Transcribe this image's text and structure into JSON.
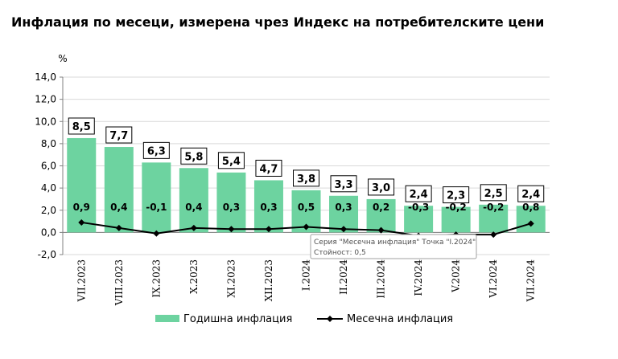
{
  "title": "Инфлация по месеци, измерена чрез Индекс на потребителските цени",
  "chart_data": {
    "type": "bar",
    "title": "Инфлация по месеци, измерена чрез Индекс на потребителските цени",
    "ylabel": "%",
    "ylim": [
      -2.0,
      14.0
    ],
    "yticks": [
      "-2,0",
      "0,0",
      "2,0",
      "4,0",
      "6,0",
      "8,0",
      "10,0",
      "12,0",
      "14,0"
    ],
    "grid": true,
    "legend_position": "bottom",
    "categories": [
      "VII.2023",
      "VIII.2023",
      "IX.2023",
      "X.2023",
      "XI.2023",
      "XII.2023",
      "I.2024",
      "II.2024",
      "III.2024",
      "IV.2024",
      "V.2024",
      "VI.2024",
      "VII.2024"
    ],
    "series": [
      {
        "name": "Годишна инфлация",
        "type": "bar",
        "color": "#6dd3a0",
        "values": [
          8.5,
          7.7,
          6.3,
          5.8,
          5.4,
          4.7,
          3.8,
          3.3,
          3.0,
          2.4,
          2.3,
          2.5,
          2.4
        ],
        "labels": [
          "8,5",
          "7,7",
          "6,3",
          "5,8",
          "5,4",
          "4,7",
          "3,8",
          "3,3",
          "3,0",
          "2,4",
          "2,3",
          "2,5",
          "2,4"
        ]
      },
      {
        "name": "Месечна инфлация",
        "type": "line",
        "color": "#000000",
        "values": [
          0.9,
          0.4,
          -0.1,
          0.4,
          0.3,
          0.3,
          0.5,
          0.3,
          0.2,
          -0.3,
          -0.2,
          -0.2,
          0.8
        ],
        "labels": [
          "0,9",
          "0,4",
          "-0,1",
          "0,4",
          "0,3",
          "0,3",
          "0,5",
          "0,3",
          "0,2",
          "-0,3",
          "-0,2",
          "-0,2",
          "0,8"
        ]
      }
    ],
    "tooltip": {
      "line1": "Серия \"Месечна инфлация\" Точка \"I.2024\"",
      "line2": "Стойност: 0,5",
      "category_index": 6
    }
  }
}
